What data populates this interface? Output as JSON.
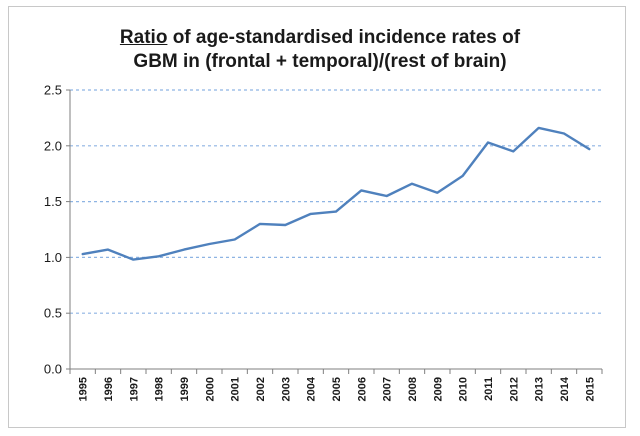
{
  "chart_data": {
    "type": "line",
    "title_part1": "Ratio",
    "title_part2": " of age-standardised  incidence rates of",
    "title_line2": "GBM in (frontal + temporal)/(rest of brain)",
    "xlabel": "",
    "ylabel": "",
    "ylim": [
      0,
      2.5
    ],
    "yticks": [
      "0.0",
      "0.5",
      "1.0",
      "1.5",
      "2.0",
      "2.5"
    ],
    "ytick_values": [
      0,
      0.5,
      1.0,
      1.5,
      2.0,
      2.5
    ],
    "grid": true,
    "legend": "none",
    "line_color": "#4f81bd",
    "grid_color": "#8eb4e3",
    "x": [
      "1995",
      "1996",
      "1997",
      "1998",
      "1999",
      "2000",
      "2001",
      "2002",
      "2003",
      "2004",
      "2005",
      "2006",
      "2007",
      "2008",
      "2009",
      "2010",
      "2011",
      "2012",
      "2013",
      "2014",
      "2015"
    ],
    "series": [
      {
        "values": [
          1.03,
          1.07,
          0.98,
          1.01,
          1.07,
          1.12,
          1.16,
          1.3,
          1.29,
          1.39,
          1.41,
          1.6,
          1.55,
          1.66,
          1.58,
          1.73,
          2.03,
          1.95,
          2.16,
          2.11,
          1.97
        ]
      }
    ]
  }
}
